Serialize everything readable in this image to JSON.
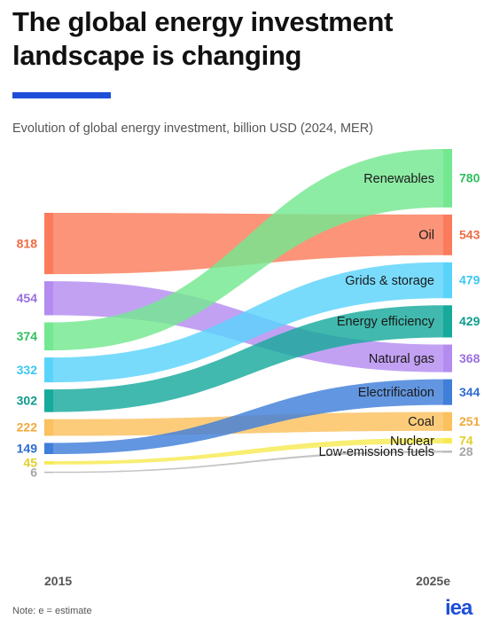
{
  "title": "The global energy investment landscape is changing",
  "subtitle": "Evolution of global energy investment, billion USD (2024, MER)",
  "note": "Note: e = estimate",
  "logo_text": "iea",
  "chart_data": {
    "type": "sankey",
    "title": "The global energy investment landscape is changing",
    "subtitle": "Evolution of global energy investment, billion USD (2024, MER)",
    "x_labels": [
      "2015",
      "2025e"
    ],
    "left_order": [
      "Oil",
      "Natural gas",
      "Renewables",
      "Grids & storage",
      "Energy efficiency",
      "Coal",
      "Electrification",
      "Nuclear",
      "Low-emissions fuels"
    ],
    "right_order": [
      "Renewables",
      "Oil",
      "Grids & storage",
      "Energy efficiency",
      "Natural gas",
      "Electrification",
      "Coal",
      "Nuclear",
      "Low-emissions fuels"
    ],
    "series": [
      {
        "name": "Oil",
        "v2015": 818,
        "v2025": 543,
        "color": "#fa7c5c"
      },
      {
        "name": "Natural gas",
        "v2015": 454,
        "v2025": 368,
        "color": "#b48cf0"
      },
      {
        "name": "Renewables",
        "v2015": 374,
        "v2025": 780,
        "color": "#74e890"
      },
      {
        "name": "Grids & storage",
        "v2015": 332,
        "v2025": 479,
        "color": "#5ad3fb"
      },
      {
        "name": "Energy efficiency",
        "v2015": 302,
        "v2025": 429,
        "color": "#17aa9c"
      },
      {
        "name": "Coal",
        "v2015": 222,
        "v2025": 251,
        "color": "#fbc15e"
      },
      {
        "name": "Electrification",
        "v2015": 149,
        "v2025": 344,
        "color": "#3f7fd9"
      },
      {
        "name": "Nuclear",
        "v2015": 45,
        "v2025": 74,
        "color": "#f7ea52"
      },
      {
        "name": "Low-emissions fuels",
        "v2015": 6,
        "v2025": 28,
        "color": "#b8b8b8"
      }
    ],
    "label_colors": {
      "Oil": "#ef6a43",
      "Natural gas": "#9a6fe0",
      "Renewables": "#2fbf5e",
      "Grids & storage": "#3cc6f2",
      "Energy efficiency": "#0f9a8d",
      "Coal": "#f0a93a",
      "Electrification": "#2f6bd1",
      "Nuclear": "#e3cf2a",
      "Low-emissions fuels": "#a6a6a6"
    }
  }
}
